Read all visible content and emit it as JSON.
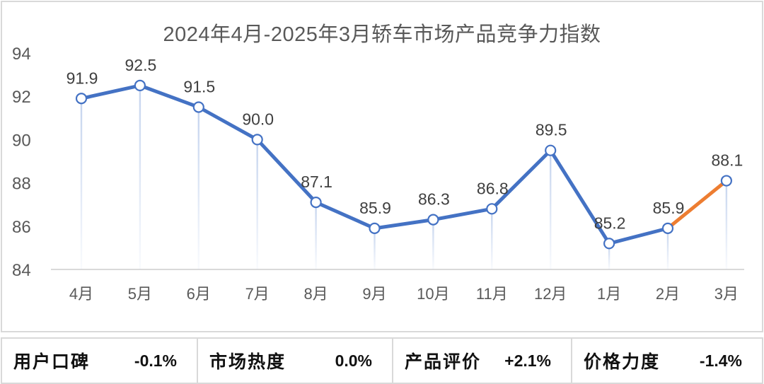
{
  "chart_data": {
    "type": "line",
    "title": "2024年4月-2025年3月轿车市场产品竞争力指数",
    "xlabel": "",
    "ylabel": "",
    "categories": [
      "4月",
      "5月",
      "6月",
      "7月",
      "8月",
      "9月",
      "10月",
      "11月",
      "12月",
      "1月",
      "2月",
      "3月"
    ],
    "series": [
      {
        "name": "轿车市场产品竞争力指数",
        "values": [
          91.9,
          92.5,
          91.5,
          90.0,
          87.1,
          85.9,
          86.3,
          86.8,
          89.5,
          85.2,
          85.9,
          88.1
        ]
      }
    ],
    "ylim": [
      84,
      94
    ],
    "yticks": [
      84,
      86,
      88,
      90,
      92,
      94
    ],
    "grid": false,
    "legend": "none",
    "annotations": "last segment (2月→3月) highlighted in orange; values shown as data labels above points",
    "colors": {
      "line": "#4472c4",
      "highlight": "#ed7d31",
      "drop_line": "#c9d7ee"
    }
  },
  "title": "2024年4月-2025年3月轿车市场产品竞争力指数",
  "stats": [
    {
      "label": "用户口碑",
      "value": "-0.1%"
    },
    {
      "label": "市场热度",
      "value": "0.0%"
    },
    {
      "label": "产品评价",
      "value": "+2.1%"
    },
    {
      "label": "价格力度",
      "value": "-1.4%"
    }
  ]
}
